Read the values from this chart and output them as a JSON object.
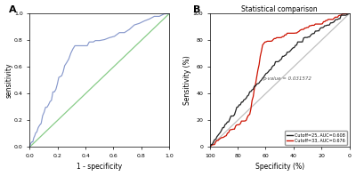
{
  "panel_A": {
    "label": "A",
    "xlabel": "1 - specificity",
    "ylabel": "sensitivity",
    "xticks": [
      0.0,
      0.2,
      0.4,
      0.6,
      0.8,
      1.0
    ],
    "yticks": [
      0.0,
      0.2,
      0.4,
      0.6,
      0.8,
      1.0
    ],
    "roc_color": "#8899cc",
    "diag_color": "#88cc88",
    "bg_color": "#ffffff"
  },
  "panel_B": {
    "label": "B",
    "title": "Statistical comparison",
    "xlabel": "Specificity (%)",
    "ylabel": "Sensitivity (%)",
    "xticks": [
      100,
      80,
      60,
      40,
      20,
      0
    ],
    "yticks": [
      0,
      20,
      40,
      60,
      80,
      100
    ],
    "diag_color": "#c0c0c0",
    "curve1_color": "#222222",
    "curve2_color": "#cc1100",
    "legend1": "Cutoff=25, AUC=0.608",
    "legend2": "Cutoff=33, AUC=0.676",
    "pvalue_text": "p-value = 0.031572",
    "bg_color": "#ffffff"
  }
}
